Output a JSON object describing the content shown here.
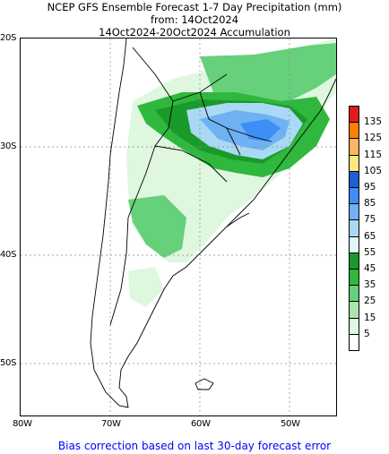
{
  "titles": {
    "line1": "NCEP GFS Ensemble Forecast 1-7 Day Precipitation (mm)",
    "line2": "from: 14Oct2024",
    "line3": "14Oct2024-20Oct2024 Accumulation"
  },
  "latitude_labels": [
    "20S",
    "30S",
    "40S",
    "50S"
  ],
  "longitude_labels": [
    "80W",
    "70W",
    "60W",
    "50W"
  ],
  "legend": {
    "levels": [
      "135",
      "125",
      "115",
      "105",
      "95",
      "85",
      "75",
      "65",
      "55",
      "45",
      "35",
      "25",
      "15",
      "5"
    ],
    "colors": [
      "#e31a1c",
      "#ff7f00",
      "#fdb462",
      "#ffe680",
      "#1f5fd6",
      "#3d8ff5",
      "#6fb1f2",
      "#a9d9f5",
      "#e0f7f7",
      "#1a9a2a",
      "#2fb83d",
      "#66d07a",
      "#a9e6a9",
      "#def7de",
      "#ffffff"
    ]
  },
  "footer": "Bias correction based on last 30-day forecast error",
  "colors": {
    "footer_text": "#0000ff",
    "land_outline": "#000000",
    "grid": "#888888"
  }
}
